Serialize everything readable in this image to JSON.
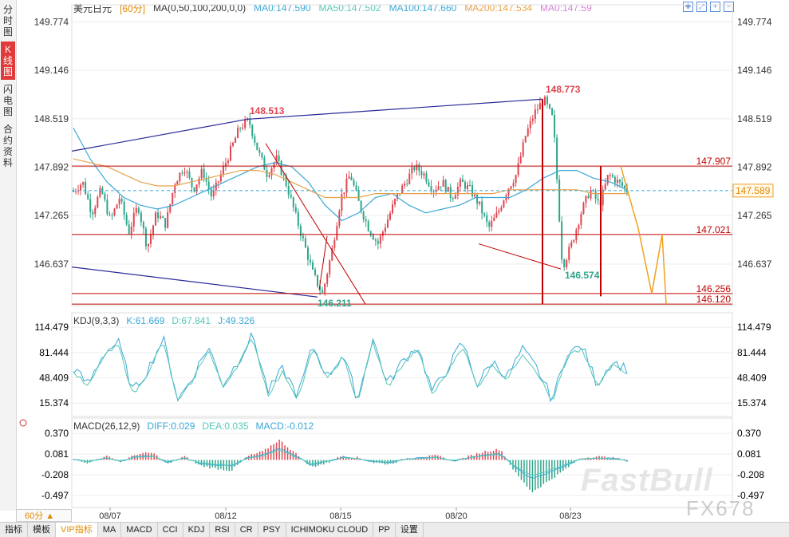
{
  "sidebar": {
    "tabs": [
      {
        "label": "分时图",
        "active": false
      },
      {
        "label": "K线图",
        "active": true
      },
      {
        "label": "闪电图",
        "active": false
      },
      {
        "label": "合约资料",
        "active": false
      }
    ]
  },
  "header": {
    "symbol": "美元日元",
    "period": "[60分]",
    "ma_params": "MA(0,50,100,200,0,0)",
    "ma_values": [
      {
        "label": "MA0:147.590",
        "color": "#3aa7d6"
      },
      {
        "label": "MA50:147.502",
        "color": "#57c7b8"
      },
      {
        "label": "MA100:147.660",
        "color": "#3aa7d6"
      },
      {
        "label": "MA200:147.534",
        "color": "#e8a14a"
      },
      {
        "label": "MA0:147.59",
        "color": "#d680d6"
      }
    ]
  },
  "kdj": {
    "params": "KDJ(9,3,3)",
    "k": "K:61.669",
    "d": "D:67.841",
    "j": "J:49.326"
  },
  "macd": {
    "params": "MACD(26,12,9)",
    "diff": "DIFF:0.029",
    "dea": "DEA:0.035",
    "macd": "MACD:-0.012"
  },
  "colors": {
    "up": "#e0464f",
    "down": "#2ea58a",
    "kline": "#2ea58a",
    "ma_short": "#3aa7d6",
    "ma_long": "#e8a14a",
    "trend": "#2a2a9a",
    "level": "#c00000",
    "projection": "#f0a020"
  },
  "chart_data": {
    "type": "candlestick",
    "symbol": "美元日元",
    "period": "60分",
    "x_ticks": [
      "08/07",
      "08/12",
      "08/15",
      "08/20",
      "08/23"
    ],
    "price_axis": {
      "ticks": [
        149.774,
        149.146,
        148.519,
        147.892,
        147.265,
        146.637
      ],
      "range": [
        146.1,
        149.85
      ]
    },
    "kdj_axis": {
      "ticks": [
        114.479,
        81.444,
        48.409,
        15.374
      ]
    },
    "macd_axis": {
      "ticks": [
        0.37,
        0.081,
        -0.208,
        -0.497
      ]
    },
    "last_price": "147.589",
    "annotations": [
      {
        "text": "148.513",
        "price": 148.513,
        "color": "#e0464f"
      },
      {
        "text": "148.773",
        "price": 148.773,
        "color": "#e0464f"
      },
      {
        "text": "146.211",
        "price": 146.211,
        "color": "#2ea58a"
      },
      {
        "text": "146.574",
        "price": 146.574,
        "color": "#2ea58a"
      }
    ],
    "levels": [
      {
        "text": "147.907",
        "price": 147.907
      },
      {
        "text": "147.021",
        "price": 147.021
      },
      {
        "text": "146.256",
        "price": 146.256
      },
      {
        "text": "146.120",
        "price": 146.12
      }
    ],
    "close_path": [
      147.58,
      147.7,
      147.3,
      147.6,
      147.2,
      147.5,
      147.05,
      147.4,
      146.85,
      147.3,
      147.15,
      147.7,
      147.9,
      147.6,
      147.85,
      147.5,
      147.8,
      148.1,
      148.4,
      148.5,
      148.1,
      147.8,
      148.0,
      147.7,
      147.3,
      146.9,
      146.5,
      146.25,
      146.8,
      147.5,
      147.8,
      147.4,
      147.1,
      146.9,
      147.2,
      147.5,
      147.7,
      147.9,
      147.8,
      147.6,
      147.7,
      147.5,
      147.7,
      147.6,
      147.4,
      147.1,
      147.3,
      147.6,
      147.8,
      148.3,
      148.6,
      148.77,
      148.5,
      146.6,
      146.9,
      147.3,
      147.6,
      147.4,
      147.8,
      147.7,
      147.59
    ],
    "ma_fast": [
      148.4,
      148.0,
      147.7,
      147.5,
      147.4,
      147.35,
      147.4,
      147.5,
      147.6,
      147.7,
      147.8,
      147.9,
      147.95,
      147.9,
      147.7,
      147.4,
      147.2,
      147.3,
      147.5,
      147.55,
      147.4,
      147.3,
      147.35,
      147.4,
      147.5,
      147.5,
      147.5,
      147.6,
      147.75,
      147.85,
      147.85,
      147.75,
      147.7,
      147.6
    ],
    "ma_slow": [
      148.0,
      147.95,
      147.9,
      147.8,
      147.7,
      147.65,
      147.65,
      147.7,
      147.75,
      147.8,
      147.85,
      147.85,
      147.8,
      147.7,
      147.6,
      147.5,
      147.5,
      147.5,
      147.55,
      147.55,
      147.55,
      147.55,
      147.55,
      147.55,
      147.55,
      147.55,
      147.6,
      147.6,
      147.6,
      147.6,
      147.6,
      147.55,
      147.55,
      147.55
    ],
    "kdj_k": [
      60,
      40,
      80,
      95,
      30,
      60,
      100,
      20,
      50,
      90,
      40,
      70,
      105,
      30,
      60,
      25,
      90,
      50,
      80,
      20,
      100,
      40,
      70,
      90,
      30,
      60,
      95,
      40,
      70,
      50,
      85,
      60,
      20,
      80,
      90,
      40,
      70,
      60
    ],
    "macd_hist": [
      0.02,
      -0.05,
      0.06,
      -0.03,
      0.08,
      0.1,
      -0.06,
      0.05,
      -0.08,
      -0.12,
      -0.15,
      0.05,
      0.12,
      0.28,
      0.1,
      -0.1,
      -0.05,
      0.06,
      0.03,
      -0.04,
      -0.06,
      0.02,
      0.04,
      0.06,
      -0.02,
      0.05,
      0.12,
      0.15,
      -0.2,
      -0.45,
      -0.3,
      -0.15,
      0.02,
      0.05,
      0.03,
      -0.01
    ]
  },
  "footer": {
    "period_select": "60分",
    "tabs": [
      "指标",
      "模板",
      "VIP指标",
      "MA",
      "MACD",
      "CCI",
      "KDJ",
      "RSI",
      "CR",
      "PSY",
      "ICHIMOKU CLOUD",
      "PP",
      "设置"
    ],
    "watermark": "FastBull",
    "watermark2": "FX678"
  }
}
